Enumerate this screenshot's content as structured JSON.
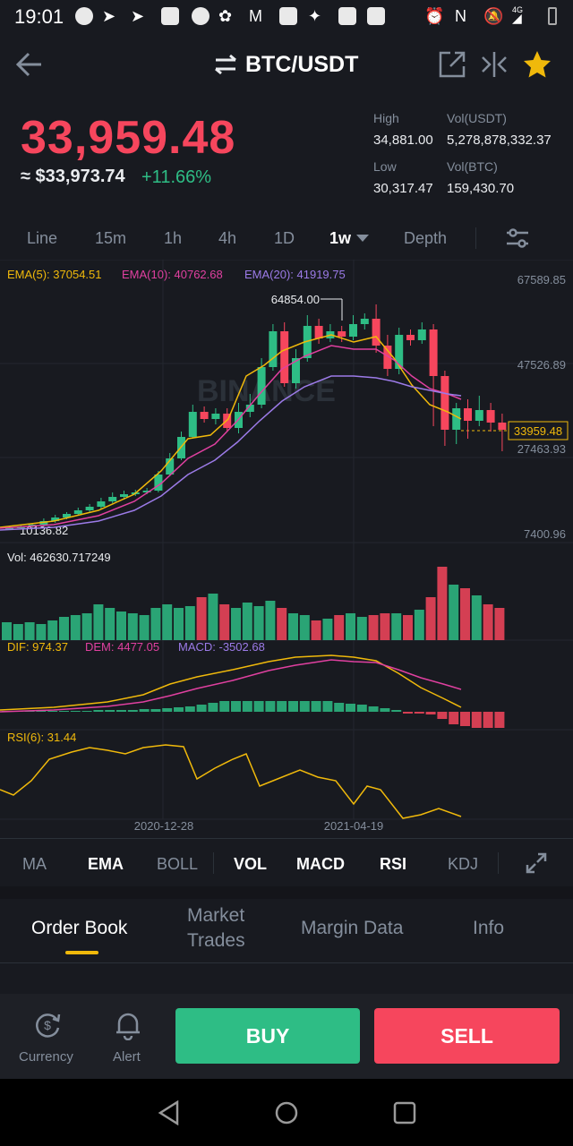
{
  "status_bar": {
    "time": "19:01",
    "network": "4G"
  },
  "header": {
    "pair": "BTC/USDT"
  },
  "ticker": {
    "price": "33,959.48",
    "approx": "≈ $33,973.74",
    "change": "+11.66%",
    "high_label": "High",
    "high": "34,881.00",
    "vol_usdt_label": "Vol(USDT)",
    "vol_usdt": "5,278,878,332.37",
    "low_label": "Low",
    "low": "30,317.47",
    "vol_btc_label": "Vol(BTC)",
    "vol_btc": "159,430.70"
  },
  "timeframes": {
    "line": "Line",
    "m15": "15m",
    "h1": "1h",
    "h4": "4h",
    "d1": "1D",
    "w1": "1w",
    "depth": "Depth"
  },
  "indicators": {
    "ema5": "EMA(5): 37054.51",
    "ema10": "EMA(10): 40762.68",
    "ema20": "EMA(20): 41919.75",
    "vol": "Vol: 462630.717249",
    "dif": "DIF: 974.37",
    "dem": "DEM: 4477.05",
    "macd": "MACD: -3502.68",
    "rsi": "RSI(6): 31.44"
  },
  "chart_data": {
    "type": "candlestick",
    "y_axis_ticks": [
      "67589.85",
      "47526.89",
      "27463.93",
      "7400.96"
    ],
    "last_price": "33959.48",
    "max_marker": "64854.00",
    "min_marker": "10136.82",
    "x_axis_ticks": [
      "2020-12-28",
      "2021-04-19"
    ],
    "watermark": "BINANCE",
    "colors": {
      "up": "#2ebd85",
      "down": "#f6465d",
      "ema5": "#f0b90b",
      "ema10": "#e040a0",
      "ema20": "#9c7be8"
    }
  },
  "indicator_tabs": {
    "ma": "MA",
    "ema": "EMA",
    "boll": "BOLL",
    "vol": "VOL",
    "macd": "MACD",
    "rsi": "RSI",
    "kdj": "KDJ"
  },
  "bottom_tabs": {
    "order_book": "Order Book",
    "market_trades_1": "Market",
    "market_trades_2": "Trades",
    "margin_data": "Margin Data",
    "info": "Info"
  },
  "actions": {
    "currency": "Currency",
    "alert": "Alert",
    "buy": "BUY",
    "sell": "SELL"
  },
  "brand_colors": {
    "bg": "#181a20",
    "yellow": "#f0b90b",
    "green": "#2ebd85",
    "red": "#f6465d"
  }
}
